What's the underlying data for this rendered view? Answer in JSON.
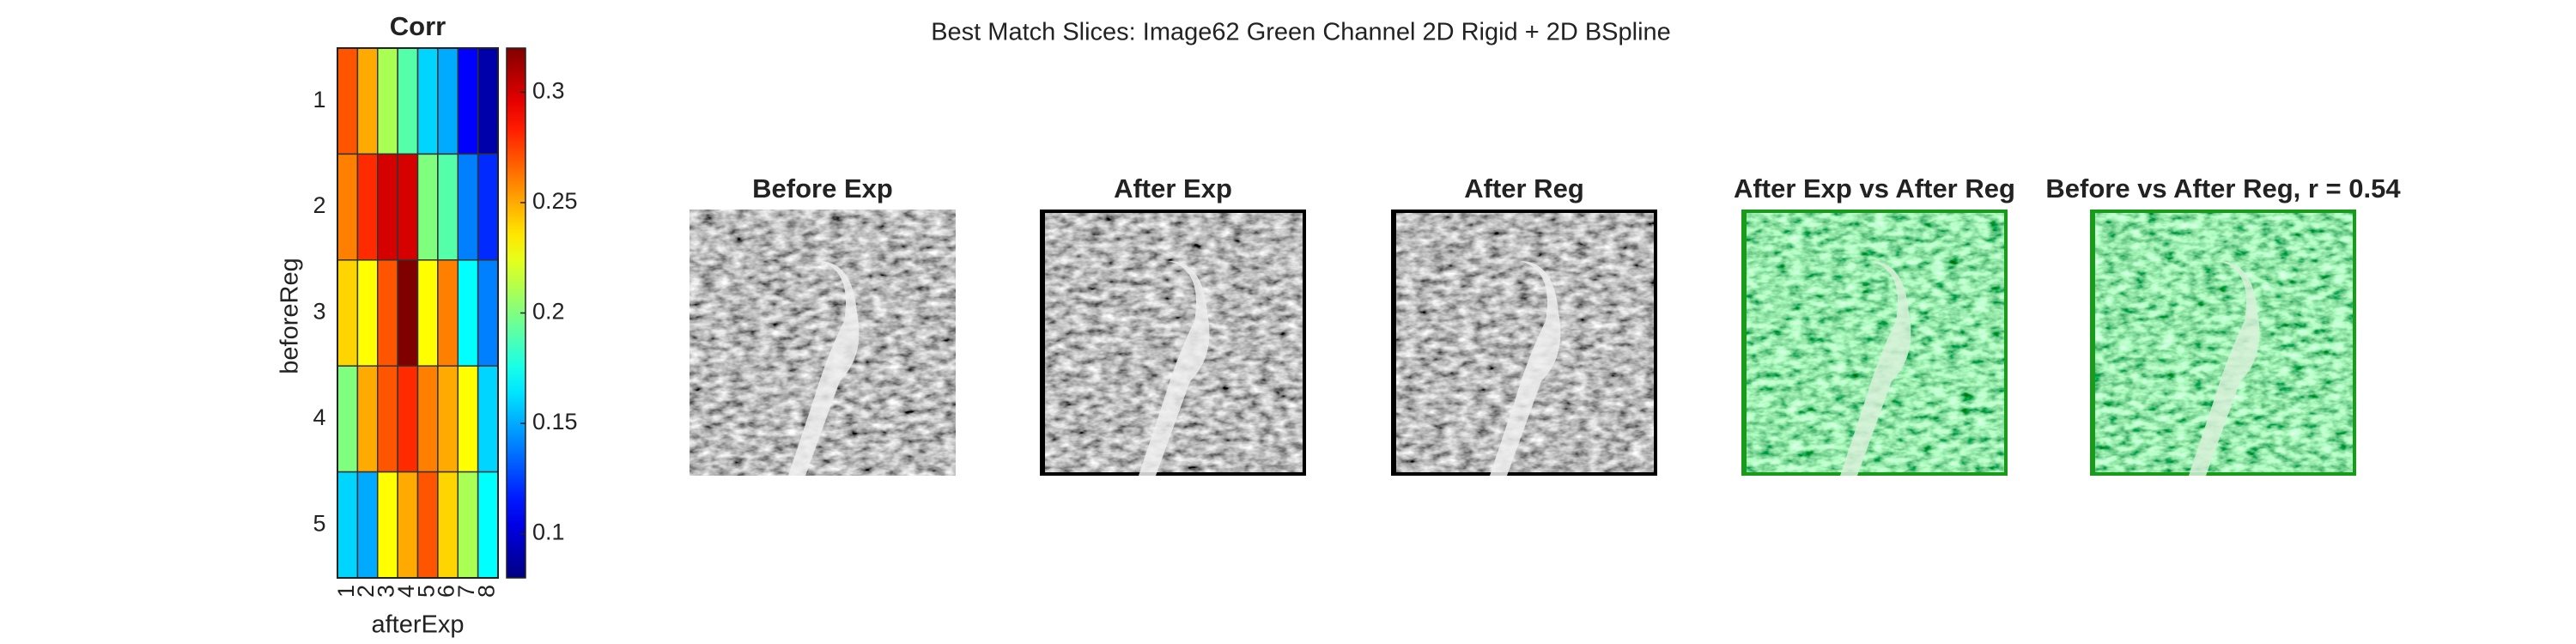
{
  "title": "Best Match Slices: Image62 Green Channel 2D Rigid + 2D BSpline",
  "chart_data": {
    "type": "heatmap",
    "title": "Corr",
    "xlabel": "afterExp",
    "ylabel": "beforeReg",
    "x_categories": [
      "1",
      "2",
      "3",
      "4",
      "5",
      "6",
      "7",
      "8"
    ],
    "y_categories": [
      "1",
      "2",
      "3",
      "4",
      "5"
    ],
    "values": [
      [
        0.27,
        0.25,
        0.21,
        0.19,
        0.16,
        0.15,
        0.11,
        0.09
      ],
      [
        0.26,
        0.28,
        0.3,
        0.3,
        0.2,
        0.19,
        0.14,
        0.12
      ],
      [
        0.24,
        0.23,
        0.27,
        0.32,
        0.23,
        0.26,
        0.17,
        0.14
      ],
      [
        0.2,
        0.25,
        0.27,
        0.28,
        0.26,
        0.25,
        0.23,
        0.16
      ],
      [
        0.16,
        0.15,
        0.23,
        0.25,
        0.27,
        0.24,
        0.21,
        0.17
      ]
    ],
    "colormap": "jet",
    "clim": [
      0.08,
      0.32
    ],
    "cticks": [
      0.1,
      0.15,
      0.2,
      0.25,
      0.3
    ]
  },
  "panels": [
    {
      "title": "Before Exp"
    },
    {
      "title": "After Exp"
    },
    {
      "title": "After Reg"
    },
    {
      "title": "After Exp vs After Reg"
    },
    {
      "title": "Before vs After Reg, r = 0.54"
    }
  ]
}
